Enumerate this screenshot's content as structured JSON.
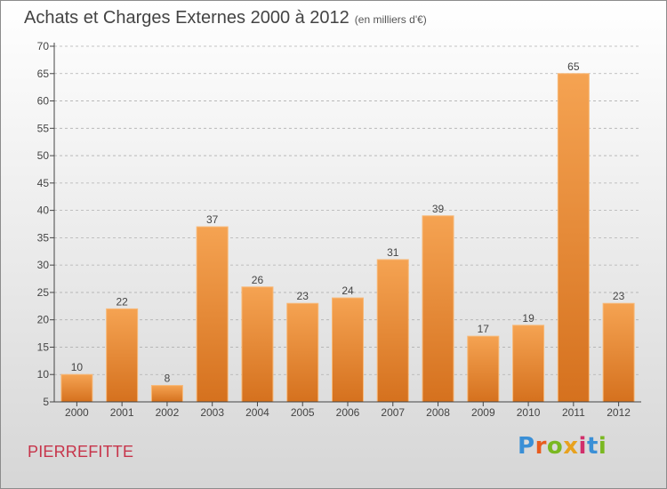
{
  "title": "Achats et Charges Externes 2000 à 2012",
  "subtitle": "(en milliers d'€)",
  "commune": "PIERREFITTE",
  "logo": {
    "text": "Proxiti",
    "colors": [
      "#3a8fd6",
      "#e85c1e",
      "#7ab821",
      "#e8a21e",
      "#d12f6b",
      "#3a8fd6",
      "#7ab821"
    ]
  },
  "colors": {
    "bar_top": "#f5a352",
    "bar_bottom": "#d5711e",
    "bar_edge": "#f7b978",
    "axis": "#444444",
    "grid": "#b0b0b0",
    "commune": "#c7344a"
  },
  "chart_data": {
    "type": "bar",
    "categories": [
      "2000",
      "2001",
      "2002",
      "2003",
      "2004",
      "2005",
      "2006",
      "2007",
      "2008",
      "2009",
      "2010",
      "2011",
      "2012"
    ],
    "values": [
      10,
      22,
      8,
      37,
      26,
      23,
      24,
      31,
      39,
      17,
      19,
      65,
      23
    ],
    "data_labels": [
      "10",
      "22",
      "8",
      "37",
      "26",
      "23",
      "24",
      "31",
      "39",
      "17",
      "19",
      "65",
      "23"
    ],
    "y_ticks": [
      5,
      10,
      15,
      20,
      25,
      30,
      35,
      40,
      45,
      50,
      55,
      60,
      65,
      70
    ],
    "ylim": [
      5,
      70
    ],
    "grid": "horizontal dashed",
    "legend": "none"
  }
}
